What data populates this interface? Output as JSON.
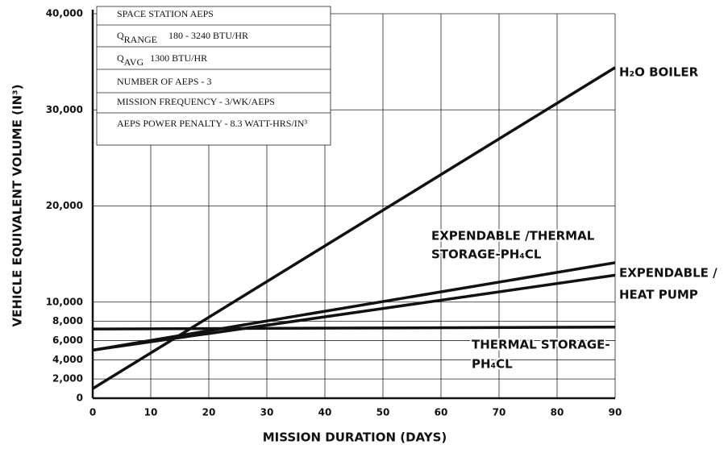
{
  "chart_data": {
    "type": "line",
    "xlabel": "MISSION DURATION (DAYS)",
    "ylabel": "VEHICLE EQUIVALENT VOLUME (IN³)",
    "xlim": [
      0,
      90
    ],
    "xticks": [
      0,
      10,
      20,
      30,
      40,
      50,
      60,
      70,
      80,
      90
    ],
    "ylim": [
      0,
      40000
    ],
    "yticks": [
      0,
      {
        "value": 2000,
        "label": "2,000"
      },
      {
        "value": 4000,
        "label": "4,000"
      },
      {
        "value": 6000,
        "label": "6,000"
      },
      {
        "value": 8000,
        "label": "8,000"
      },
      {
        "value": 10000,
        "label": "10,000"
      },
      {
        "value": 20000,
        "label": "20,000"
      },
      {
        "value": 30000,
        "label": "30,000"
      },
      {
        "value": 40000,
        "label": "40,000"
      }
    ],
    "grid": true,
    "x": [
      0,
      90
    ],
    "series": [
      {
        "name": "H₂O BOILER",
        "color": "#111111",
        "values": [
          1000,
          34400
        ]
      },
      {
        "name": "EXPENDABLE /THERMAL STORAGE-PH₄CL",
        "color": "#111111",
        "values": [
          5000,
          14100
        ]
      },
      {
        "name": "EXPENDABLE / HEAT PUMP",
        "color": "#111111",
        "values": [
          5000,
          12800
        ]
      },
      {
        "name": "THERMAL STORAGE-PH₄CL",
        "color": "#111111",
        "values": [
          7200,
          7400
        ]
      }
    ],
    "annotations": [
      [
        "H₂O BOILER"
      ],
      [
        "EXPENDABLE /THERMAL",
        "STORAGE-PH₄CL"
      ],
      [
        "EXPENDABLE /",
        "HEAT PUMP"
      ],
      [
        "THERMAL STORAGE-",
        "PH₄CL"
      ]
    ],
    "info": [
      [
        "SPACE STATION AEPS"
      ],
      [
        "Q",
        "RANGE",
        "180 - 3240 BTU/HR"
      ],
      [
        "Q",
        "AVG",
        "1300 BTU/HR"
      ],
      [
        "NUMBER OF AEPS - 3"
      ],
      [
        "MISSION FREQUENCY - 3/WK/AEPS"
      ],
      [
        "AEPS POWER PENALTY - 8.3 WATT-HRS/IN³"
      ]
    ]
  }
}
